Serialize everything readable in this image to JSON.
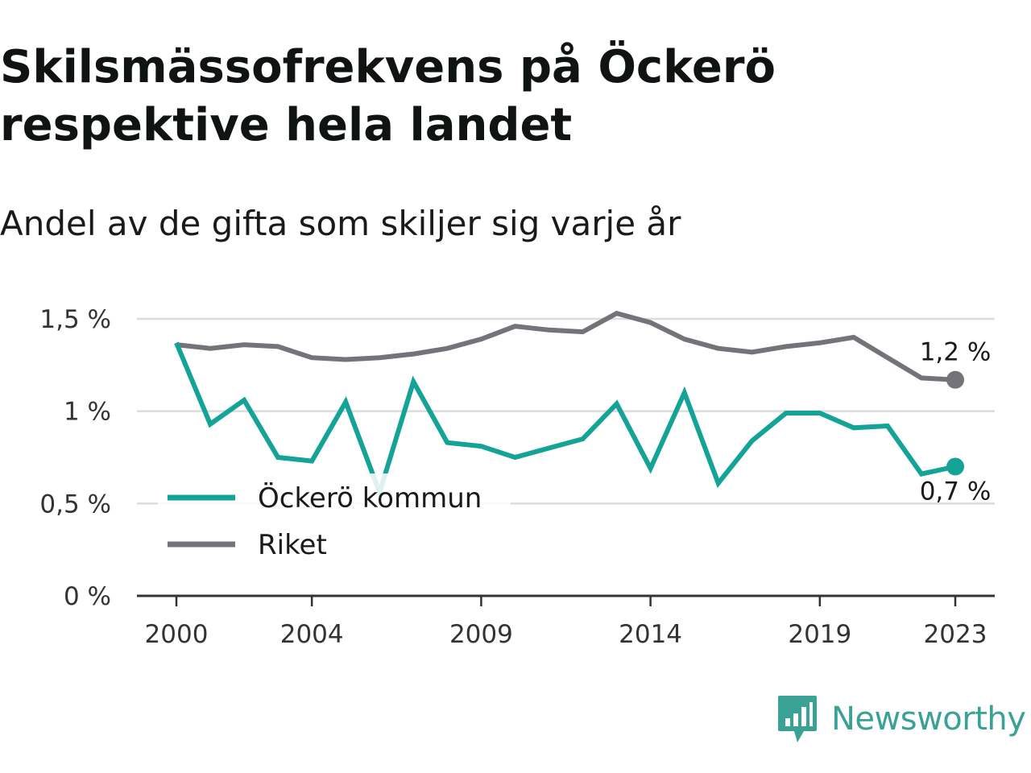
{
  "header": {
    "title": "Skilsmässofrekvens på Öckerö respektive hela landet",
    "subtitle": "Andel av de gifta som skiljer sig varje år"
  },
  "brand": {
    "name": "Newsworthy",
    "icon": "newsworthy-logo-icon",
    "color": "#3aa195"
  },
  "chart_data": {
    "type": "line",
    "x": [
      2000,
      2001,
      2002,
      2003,
      2004,
      2005,
      2006,
      2007,
      2008,
      2009,
      2010,
      2011,
      2012,
      2013,
      2014,
      2015,
      2016,
      2017,
      2018,
      2019,
      2020,
      2021,
      2022,
      2023
    ],
    "x_ticks": [
      2000,
      2004,
      2009,
      2014,
      2019,
      2023
    ],
    "x_tick_labels": [
      "2000",
      "2004",
      "2009",
      "2014",
      "2019",
      "2023"
    ],
    "ylim": [
      0,
      1.5
    ],
    "y_ticks": [
      0,
      0.5,
      1,
      1.5
    ],
    "y_tick_labels": [
      "0 %",
      "0,5 %",
      "1 %",
      "1,5 %"
    ],
    "grid": true,
    "legend": "bottom-left",
    "series": [
      {
        "name": "Öckerö kommun",
        "color": "#14a397",
        "values": [
          1.37,
          0.93,
          1.06,
          0.75,
          0.73,
          1.05,
          0.56,
          1.16,
          0.83,
          0.81,
          0.75,
          0.8,
          0.85,
          1.04,
          0.69,
          1.1,
          0.61,
          0.84,
          0.99,
          0.99,
          0.91,
          0.92,
          0.66,
          0.7
        ],
        "end_label": "0,7 %"
      },
      {
        "name": "Riket",
        "color": "#747379",
        "values": [
          1.36,
          1.34,
          1.36,
          1.35,
          1.29,
          1.28,
          1.29,
          1.31,
          1.34,
          1.39,
          1.46,
          1.44,
          1.43,
          1.53,
          1.48,
          1.39,
          1.34,
          1.32,
          1.35,
          1.37,
          1.4,
          1.29,
          1.18,
          1.17
        ],
        "end_label": "1,2 %"
      }
    ]
  }
}
